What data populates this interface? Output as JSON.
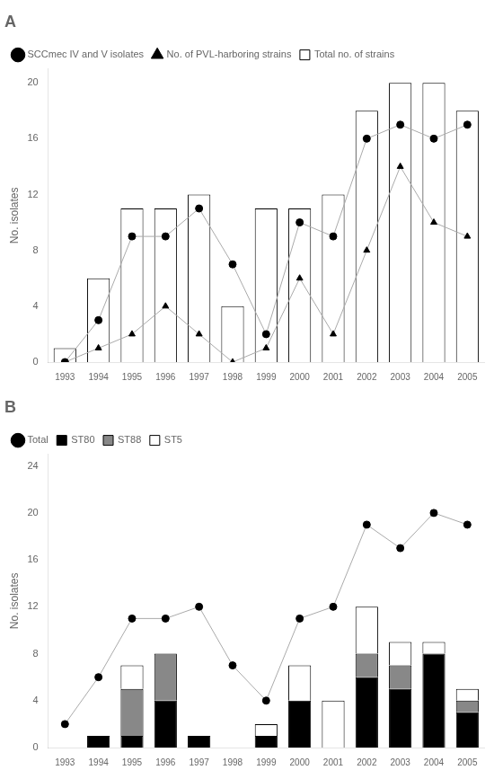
{
  "chart_data": [
    {
      "type": "bar",
      "title": "A",
      "ylabel": "No. isolates",
      "categories": [
        "1993",
        "1994",
        "1995",
        "1996",
        "1997",
        "1998",
        "1999",
        "2000",
        "2001",
        "2002",
        "2003",
        "2004",
        "2005"
      ],
      "series": [
        {
          "name": "Total no. of strains",
          "type": "bar",
          "color": "#ffffff",
          "values": [
            1,
            6,
            11,
            11,
            12,
            4,
            11,
            11,
            12,
            18,
            20,
            20,
            18
          ]
        },
        {
          "name": "SCCmec IV and V isolates",
          "type": "line",
          "marker": "circle",
          "color": "#000000",
          "values": [
            0,
            3,
            9,
            9,
            11,
            7,
            2,
            10,
            9,
            16,
            17,
            16,
            17
          ]
        },
        {
          "name": "No. of PVL-harboring strains",
          "type": "line",
          "marker": "triangle",
          "color": "#000000",
          "values": [
            0,
            1,
            2,
            4,
            2,
            0,
            1,
            6,
            2,
            8,
            14,
            10,
            9
          ]
        }
      ],
      "ylim": [
        0,
        21
      ],
      "yticks": [
        0,
        4,
        8,
        12,
        16,
        20
      ],
      "grid": false,
      "legend": "upper left"
    },
    {
      "type": "bar",
      "title": "B",
      "ylabel": "No. isolates",
      "stacked": true,
      "categories": [
        "1993",
        "1994",
        "1995",
        "1996",
        "1997",
        "1998",
        "1999",
        "2000",
        "2001",
        "2002",
        "2003",
        "2004",
        "2005"
      ],
      "series": [
        {
          "name": "ST80",
          "type": "bar",
          "color": "#000000",
          "values": [
            0,
            1,
            1,
            4,
            1,
            0,
            1,
            4,
            0,
            6,
            5,
            8,
            3
          ]
        },
        {
          "name": "ST88",
          "type": "bar",
          "color": "#888888",
          "values": [
            0,
            0,
            4,
            4,
            0,
            0,
            0,
            0,
            0,
            2,
            2,
            0,
            1
          ]
        },
        {
          "name": "ST5",
          "type": "bar",
          "color": "#ffffff",
          "values": [
            0,
            0,
            2,
            0,
            0,
            0,
            1,
            3,
            4,
            4,
            2,
            1,
            1
          ]
        },
        {
          "name": "Total",
          "type": "line",
          "marker": "circle",
          "color": "#000000",
          "values": [
            2,
            6,
            11,
            11,
            12,
            7,
            4,
            11,
            12,
            19,
            17,
            20,
            19
          ]
        }
      ],
      "ylim": [
        0,
        25
      ],
      "yticks": [
        0,
        4,
        8,
        12,
        16,
        20,
        24
      ],
      "grid": false,
      "legend": "upper left"
    }
  ]
}
